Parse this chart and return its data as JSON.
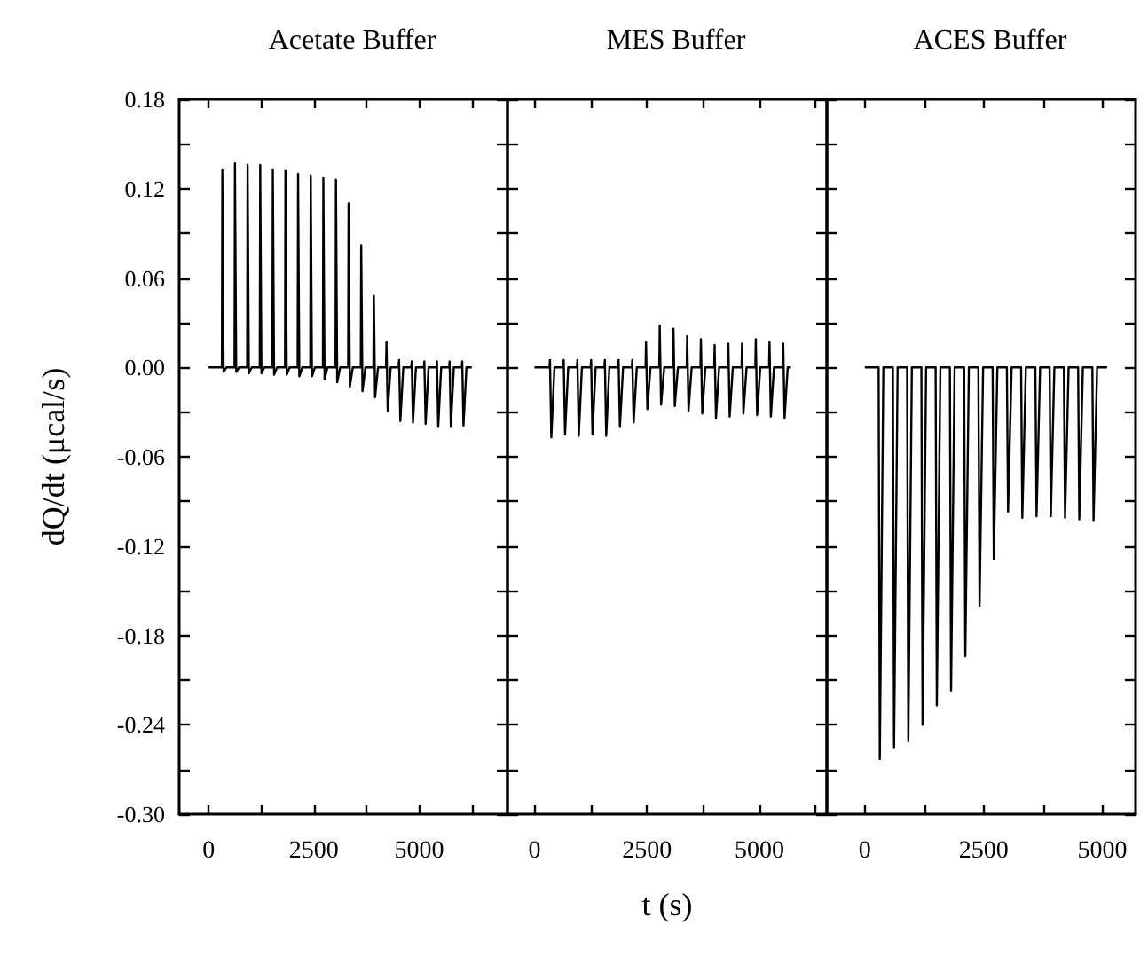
{
  "chart_data": [
    {
      "type": "line",
      "title": "Acetate Buffer",
      "ylabel": "dQ/dt (μcal/s)",
      "xlim": [
        -700,
        7100
      ],
      "ylim": [
        -0.3,
        0.18
      ],
      "xticks": [
        0,
        {
          "value": 1250,
          "label": null
        },
        2500,
        {
          "value": 3750,
          "label": null
        },
        5000,
        {
          "value": 6250,
          "label": null
        }
      ],
      "yticks": [
        0.18,
        {
          "value": 0.15,
          "label": null
        },
        0.12,
        {
          "value": 0.09,
          "label": null
        },
        0.06,
        {
          "value": 0.03,
          "label": null
        },
        {
          "value": 0,
          "label": "0.00"
        },
        {
          "value": -0.03,
          "label": null
        },
        -0.06,
        {
          "value": -0.09,
          "label": null
        },
        -0.12,
        {
          "value": -0.15,
          "label": null
        },
        -0.18,
        {
          "value": -0.21,
          "label": null
        },
        -0.24,
        {
          "value": -0.27,
          "label": null
        },
        {
          "value": -0.3,
          "label": "-0.30"
        }
      ],
      "series": [
        {
          "color": "#000000",
          "x": [
            0,
            315,
            325,
            355,
            425,
            615,
            625,
            655,
            725,
            915,
            925,
            955,
            1025,
            1215,
            1225,
            1255,
            1325,
            1515,
            1525,
            1555,
            1625,
            1815,
            1825,
            1855,
            1925,
            2115,
            2125,
            2155,
            2225,
            2415,
            2425,
            2455,
            2525,
            2715,
            2725,
            2755,
            2825,
            3015,
            3025,
            3055,
            3125,
            3315,
            3325,
            3355,
            3425,
            3615,
            3625,
            3655,
            3725,
            3915,
            3925,
            3955,
            4025,
            4215,
            4225,
            4255,
            4325,
            4515,
            4525,
            4555,
            4625,
            4815,
            4825,
            4855,
            4925,
            5115,
            5125,
            5155,
            5225,
            5415,
            5425,
            5455,
            5525,
            5715,
            5725,
            5755,
            5825,
            6015,
            6025,
            6055,
            6125,
            6250
          ],
          "values": [
            0,
            0,
            0.133,
            -0.003,
            0,
            0,
            0.137,
            -0.003,
            0,
            0,
            0.136,
            -0.004,
            0,
            0,
            0.136,
            -0.004,
            0,
            0,
            0.133,
            -0.005,
            0,
            0,
            0.132,
            -0.005,
            0,
            0,
            0.13,
            -0.006,
            0,
            0,
            0.129,
            -0.006,
            0,
            0,
            0.127,
            -0.008,
            0,
            0,
            0.126,
            -0.01,
            0,
            0,
            0.11,
            -0.013,
            0,
            0,
            0.082,
            -0.016,
            0,
            0,
            0.048,
            -0.02,
            0,
            0,
            0.017,
            -0.029,
            0,
            0,
            0.005,
            -0.036,
            0,
            0,
            0.004,
            -0.037,
            0,
            0,
            0.004,
            -0.038,
            0,
            0,
            0.004,
            -0.04,
            0,
            0,
            0.004,
            -0.04,
            0,
            0,
            0.004,
            -0.039,
            0,
            0
          ]
        }
      ]
    },
    {
      "type": "line",
      "title": "MES Buffer",
      "xlabel": "t (s)",
      "tick_labels": "x",
      "xlim": [
        -600,
        6500
      ],
      "ylim": [
        -0.3,
        0.18
      ],
      "xticks": [
        0,
        {
          "value": 1250,
          "label": null
        },
        2500,
        {
          "value": 3750,
          "label": null
        },
        5000,
        {
          "value": 6250,
          "label": null
        }
      ],
      "yticks": [
        0.18,
        0.15,
        0.12,
        0.09,
        0.06,
        0.03,
        0,
        -0.03,
        -0.06,
        -0.09,
        -0.12,
        -0.15,
        -0.18,
        -0.21,
        -0.24,
        -0.27,
        -0.3
      ],
      "series": [
        {
          "color": "#000000",
          "x": [
            0,
            335,
            345,
            375,
            445,
            640,
            650,
            680,
            750,
            945,
            955,
            985,
            1055,
            1250,
            1260,
            1290,
            1360,
            1555,
            1565,
            1595,
            1665,
            1860,
            1870,
            1900,
            1970,
            2165,
            2175,
            2205,
            2275,
            2470,
            2480,
            2510,
            2580,
            2775,
            2785,
            2815,
            2885,
            3080,
            3090,
            3120,
            3190,
            3385,
            3395,
            3425,
            3495,
            3690,
            3700,
            3730,
            3800,
            3995,
            4005,
            4035,
            4105,
            4300,
            4310,
            4340,
            4410,
            4605,
            4615,
            4645,
            4715,
            4910,
            4920,
            4950,
            5020,
            5215,
            5225,
            5255,
            5325,
            5520,
            5530,
            5560,
            5630,
            5700
          ],
          "values": [
            0,
            0,
            0.005,
            -0.047,
            0,
            0,
            0.005,
            -0.045,
            0,
            0,
            0.005,
            -0.046,
            0,
            0,
            0.005,
            -0.045,
            0,
            0,
            0.005,
            -0.046,
            0,
            0,
            0.005,
            -0.04,
            0,
            0,
            0.005,
            -0.037,
            0,
            0,
            0.017,
            -0.028,
            0,
            0,
            0.028,
            -0.025,
            0,
            0,
            0.026,
            -0.026,
            0,
            0,
            0.021,
            -0.029,
            0,
            0,
            0.019,
            -0.031,
            0,
            0,
            0.015,
            -0.034,
            0,
            0,
            0.016,
            -0.033,
            0,
            0,
            0.016,
            -0.031,
            0,
            0,
            0.019,
            -0.032,
            0,
            0,
            0.017,
            -0.033,
            0,
            0,
            0.016,
            -0.034,
            0,
            0
          ]
        }
      ]
    },
    {
      "type": "line",
      "title": "ACES Buffer",
      "tick_labels": "x",
      "xlim": [
        -800,
        5700
      ],
      "ylim": [
        -0.3,
        0.18
      ],
      "xticks": [
        0,
        {
          "value": 1250,
          "label": null
        },
        2500,
        {
          "value": 3750,
          "label": null
        },
        5000
      ],
      "yticks": [
        0.18,
        0.15,
        0.12,
        0.09,
        0.06,
        0.03,
        0,
        -0.03,
        -0.06,
        -0.09,
        -0.12,
        -0.15,
        -0.18,
        -0.21,
        -0.24,
        -0.27,
        -0.3
      ],
      "series": [
        {
          "color": "#000000",
          "x": [
            0,
            290,
            315,
            390,
            590,
            615,
            690,
            890,
            915,
            990,
            1190,
            1215,
            1290,
            1490,
            1515,
            1590,
            1790,
            1815,
            1890,
            2090,
            2115,
            2190,
            2390,
            2415,
            2490,
            2690,
            2715,
            2790,
            2990,
            3015,
            3090,
            3290,
            3315,
            3390,
            3590,
            3615,
            3690,
            3890,
            3915,
            3990,
            4190,
            4215,
            4290,
            4490,
            4515,
            4590,
            4790,
            4815,
            4890,
            5100
          ],
          "values": [
            0,
            0,
            -0.263,
            0,
            0,
            -0.255,
            0,
            0,
            -0.251,
            0,
            0,
            -0.24,
            0,
            0,
            -0.227,
            0,
            0,
            -0.217,
            0,
            0,
            -0.194,
            0,
            0,
            -0.16,
            0,
            0,
            -0.129,
            0,
            0,
            -0.097,
            0,
            0,
            -0.101,
            0,
            0,
            -0.1,
            0,
            0,
            -0.1,
            0,
            0,
            -0.101,
            0,
            0,
            -0.102,
            0,
            0,
            -0.103,
            0,
            0
          ]
        }
      ]
    }
  ]
}
